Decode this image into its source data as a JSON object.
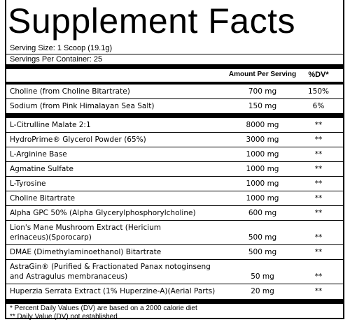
{
  "title": "Supplement Facts",
  "serving_size": "Serving Size: 1 Scoop (19.1g)",
  "servings_per_container": "Servings Per Container: 25",
  "header": {
    "amount": "Amount Per Serving",
    "dv": "%DV*"
  },
  "group1": [
    {
      "name": "Choline (from Choline Bitartrate)",
      "amount": "700 mg",
      "dv": "150%"
    },
    {
      "name": "Sodium (from Pink Himalayan Sea Salt)",
      "amount": "150 mg",
      "dv": "6%"
    }
  ],
  "group2": [
    {
      "name": "L-Citrulline Malate 2:1",
      "amount": "8000 mg",
      "dv": "**"
    },
    {
      "name": "HydroPrime® Glycerol Powder (65%)",
      "amount": "3000 mg",
      "dv": "**"
    },
    {
      "name": "L-Arginine Base",
      "amount": "1000 mg",
      "dv": "**"
    },
    {
      "name": "Agmatine Sulfate",
      "amount": "1000 mg",
      "dv": "**"
    },
    {
      "name": "L-Tyrosine",
      "amount": "1000 mg",
      "dv": "**"
    },
    {
      "name": "Choline Bitartrate",
      "amount": "1000 mg",
      "dv": "**"
    },
    {
      "name": "Alpha GPC 50% (Alpha Glycerylphosphorylcholine)",
      "amount": "600 mg",
      "dv": "**"
    },
    {
      "name_line1": "Lion's Mane Mushroom Extract (Hericium",
      "name_line2": "erinaceus)(Sporocarp)",
      "amount": "500 mg",
      "dv": "**"
    },
    {
      "name": "DMAE (Dimethylaminoethanol) Bitartrate",
      "amount": "500 mg",
      "dv": "**"
    },
    {
      "name_line1": "AstraGin® (Purified & Fractionated Panax notoginseng",
      "name_line2": "and Astragulus membranaceus)",
      "amount": "50 mg",
      "dv": "**"
    },
    {
      "name": "Huperzia Serrata Extract (1% Huperzine-A)(Aerial Parts)",
      "amount": "20 mg",
      "dv": "**"
    }
  ],
  "footnotes": [
    "* Percent Daily Values (DV) are based on a 2000 calorie diet",
    "** Daily Value (DV) not established"
  ]
}
